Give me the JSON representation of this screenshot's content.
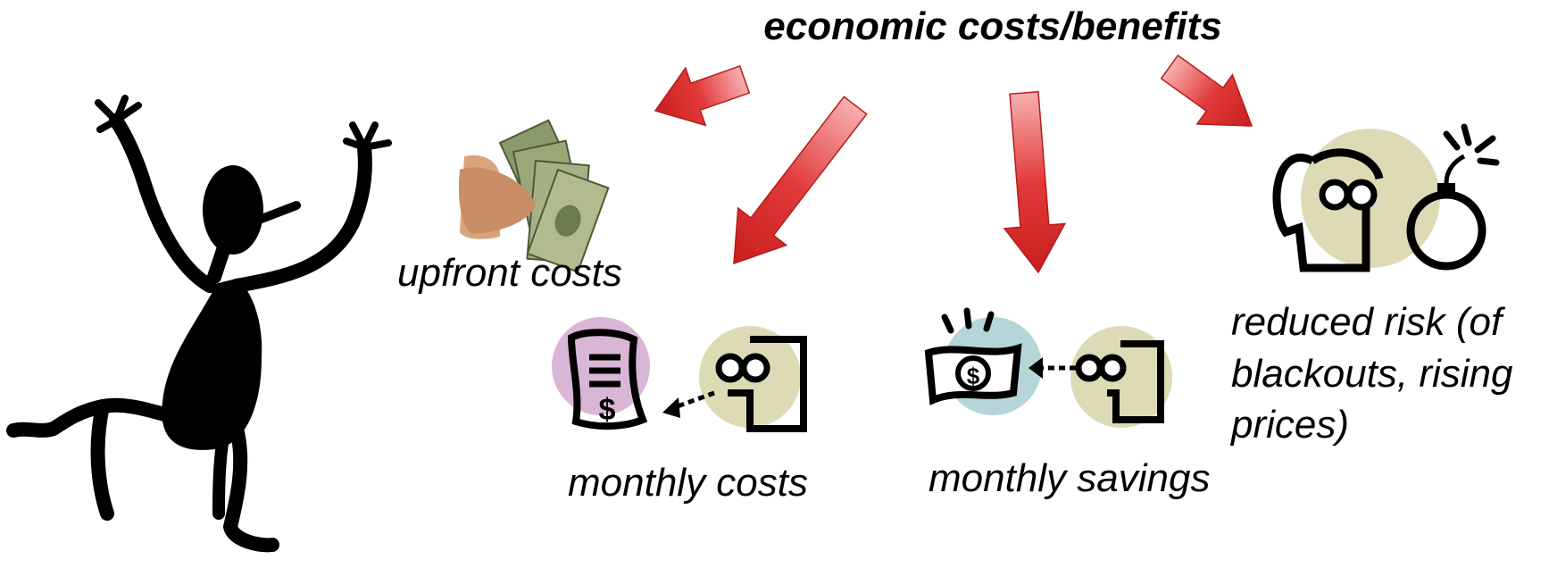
{
  "title": "economic costs/benefits",
  "nodes": [
    {
      "label": "upfront costs"
    },
    {
      "label": "monthly costs"
    },
    {
      "label": "monthly savings"
    },
    {
      "label_lines": [
        "reduced risk (of",
        "blackouts, rising",
        "prices)"
      ]
    }
  ]
}
